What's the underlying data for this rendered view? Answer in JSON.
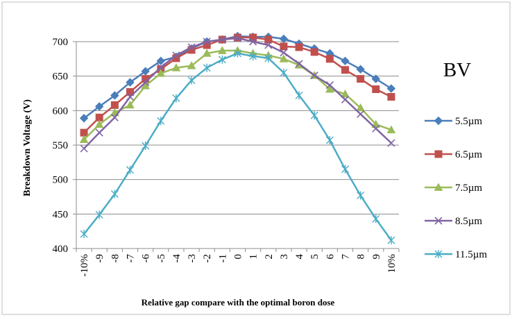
{
  "chart_data": {
    "type": "line",
    "title": "BV",
    "xlabel": "Relative gap compare with the optimal boron dose",
    "ylabel": "Breakdown Voltage (V)",
    "ylim": [
      400,
      700
    ],
    "yticks": [
      "400",
      "450",
      "500",
      "550",
      "600",
      "650",
      "700"
    ],
    "categories": [
      "-10%",
      "-9",
      "-8",
      "-7",
      "-6",
      "-5",
      "-4",
      "-3",
      "-2",
      "-1",
      "0",
      "1",
      "2",
      "3",
      "4",
      "5",
      "6",
      "7",
      "8",
      "9",
      "10%"
    ],
    "grid": "horizontal",
    "legend_position": "right",
    "series": [
      {
        "name": "5.5µm",
        "color": "#4a7ebb",
        "marker": "diamond",
        "values": [
          589,
          606,
          622,
          641,
          657,
          672,
          678,
          690,
          700,
          703,
          708,
          707,
          707,
          704,
          697,
          690,
          683,
          672,
          660,
          646,
          632
        ]
      },
      {
        "name": "6.5µm",
        "color": "#c0504d",
        "marker": "square",
        "values": [
          568,
          590,
          608,
          627,
          646,
          660,
          676,
          688,
          695,
          703,
          706,
          706,
          703,
          693,
          692,
          685,
          675,
          659,
          646,
          631,
          620
        ]
      },
      {
        "name": "7.5µm",
        "color": "#9bbb59",
        "marker": "triangle",
        "values": [
          558,
          580,
          597,
          608,
          636,
          654,
          662,
          665,
          683,
          687,
          687,
          683,
          680,
          675,
          666,
          651,
          631,
          624,
          604,
          580,
          572
        ]
      },
      {
        "name": "8.5µm",
        "color": "#8064a2",
        "marker": "x",
        "values": [
          545,
          568,
          590,
          620,
          641,
          663,
          680,
          692,
          700,
          703,
          705,
          700,
          695,
          684,
          668,
          651,
          637,
          616,
          595,
          574,
          553
        ]
      },
      {
        "name": "11.5µm",
        "color": "#4bacc6",
        "marker": "star",
        "values": [
          421,
          449,
          479,
          514,
          549,
          585,
          618,
          644,
          662,
          674,
          683,
          679,
          676,
          655,
          622,
          593,
          557,
          515,
          477,
          443,
          412
        ]
      }
    ]
  }
}
